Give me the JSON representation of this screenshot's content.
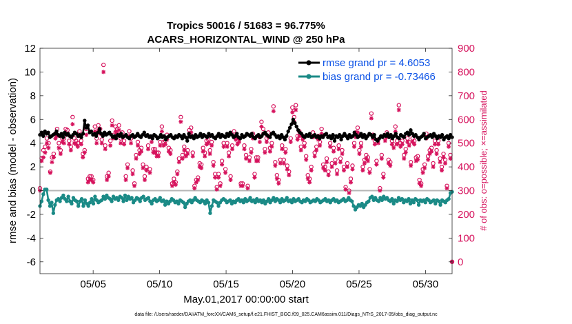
{
  "title_line1": "Tropics 50016 / 51683 = 96.775%",
  "title_line2": "ACARS_HORIZONTAL_WIND @ 250 hPa",
  "xlabel": "May.01,2017 00:00:00 start",
  "ylabel": "rmse and bias (model - observation)",
  "y2label": "# of obs: o=possible; ×=assimilated",
  "footer": "data file: /Users/raeder/DAI/ATM_forcXX/CAM6_setup/f.e21.FHIST_BGC.f09_025.CAM6assim.011/Diags_NTrS_2017-05/obs_diag_output.nc",
  "legend": [
    {
      "label": "rmse grand pr = 4.6053",
      "color": "#000000"
    },
    {
      "label": "bias grand pr = -0.73466",
      "color": "#1a8a86"
    }
  ],
  "chart_data": {
    "type": "line",
    "title": "Tropics 50016 / 51683 = 96.775%",
    "x_tick_labels": [
      "05/05",
      "05/10",
      "05/15",
      "05/20",
      "05/25",
      "05/30"
    ],
    "x_tick_days": [
      5,
      10,
      15,
      20,
      25,
      30
    ],
    "xlim_days": [
      1,
      32
    ],
    "ylim": [
      -7,
      12
    ],
    "y_ticks": [
      -6,
      -4,
      -2,
      0,
      2,
      4,
      6,
      8,
      10,
      12
    ],
    "y2lim": [
      -50,
      900
    ],
    "y2_ticks": [
      0,
      100,
      200,
      300,
      400,
      500,
      600,
      700,
      800,
      900
    ],
    "colors": {
      "rmse": "#000000",
      "bias": "#1a8a86",
      "obs": "#d6135d",
      "zero_line": "#b5b5b5"
    },
    "series": [
      {
        "name": "rmse",
        "axis": "left",
        "values": [
          4.7,
          4.9,
          4.6,
          5.0,
          4.8,
          4.9,
          4.5,
          4.6,
          4.7,
          4.8,
          5.0,
          4.7,
          4.6,
          4.8,
          4.5,
          4.9,
          4.7,
          4.8,
          4.6,
          4.5,
          4.7,
          4.9,
          4.8,
          4.6,
          4.7,
          4.5,
          4.8,
          5.9,
          5.3,
          5.5,
          4.9,
          5.0,
          4.7,
          4.8,
          4.6,
          4.9,
          5.2,
          4.8,
          4.6,
          4.9,
          4.7,
          4.8,
          4.9,
          4.7,
          4.5,
          4.6,
          4.4,
          4.7,
          4.6,
          4.8,
          4.5,
          4.6,
          4.7,
          4.5,
          4.4,
          4.6,
          4.7,
          4.5,
          4.6,
          4.8,
          4.6,
          4.5,
          4.7,
          4.9,
          4.6,
          4.7,
          4.5,
          4.6,
          4.4,
          4.7,
          4.6,
          4.4,
          4.5,
          4.7,
          4.5,
          4.6,
          4.3,
          4.5,
          4.6,
          4.7,
          4.5,
          4.4,
          4.6,
          4.5,
          4.7,
          4.6,
          4.4,
          4.7,
          4.5,
          4.2,
          4.8,
          4.5,
          4.6,
          4.4,
          4.7,
          4.5,
          4.6,
          4.8,
          4.5,
          4.7,
          4.6,
          4.5,
          4.8,
          4.6,
          4.7,
          4.5,
          4.4,
          4.6,
          4.8,
          4.5,
          4.7,
          4.6,
          4.5,
          4.8,
          4.6,
          4.9,
          4.7,
          4.5,
          4.6,
          4.8,
          4.5,
          4.4,
          4.7,
          4.5,
          4.6,
          4.8,
          4.7,
          4.6,
          4.8,
          4.5,
          4.4,
          4.6,
          4.7,
          4.5,
          4.6,
          4.8,
          4.9,
          4.7,
          4.6,
          4.5,
          4.8,
          4.9,
          4.7,
          4.5,
          4.6,
          4.4,
          4.7,
          4.5,
          4.3,
          4.6,
          5.0,
          5.3,
          5.6,
          6.0,
          5.7,
          5.4,
          5.1,
          4.9,
          4.8,
          4.6,
          4.5,
          4.7,
          4.6,
          4.8,
          4.5,
          4.6,
          4.7,
          4.5,
          4.6,
          4.4,
          4.6,
          4.5,
          4.7,
          4.8,
          4.5,
          4.6,
          4.4,
          4.7,
          4.2,
          4.6,
          4.5,
          4.7,
          4.3,
          4.6,
          4.8,
          4.6,
          4.4,
          4.7,
          4.5,
          4.6,
          4.9,
          4.7,
          4.5,
          4.6,
          4.8,
          4.5,
          4.7,
          4.4,
          4.6,
          4.8,
          4.7,
          4.5,
          4.7,
          4.3,
          4.2,
          4.4,
          4.6,
          4.5,
          4.7,
          4.6,
          4.8,
          4.5,
          4.7,
          4.4,
          4.6,
          4.8,
          4.5,
          4.4,
          4.7,
          4.6,
          4.5,
          4.8,
          4.9,
          4.7,
          5.1,
          4.8,
          4.6,
          4.7,
          4.5,
          4.3,
          4.5,
          4.6,
          4.8,
          4.4,
          4.5,
          4.6,
          4.7,
          4.5,
          4.8,
          4.6,
          4.4,
          4.6,
          4.5,
          4.7,
          4.3,
          4.5,
          4.6,
          4.4,
          4.7,
          4.5
        ]
      },
      {
        "name": "bias",
        "axis": "left",
        "values": [
          -1.3,
          -0.9,
          -0.3,
          0.1,
          0.1,
          -0.8,
          -1.3,
          -1.0,
          -1.9,
          -1.2,
          -0.8,
          -0.7,
          -0.9,
          -0.6,
          -0.4,
          -0.7,
          -0.9,
          -0.5,
          -0.9,
          -1.1,
          -0.6,
          -0.8,
          -0.9,
          -1.3,
          -0.9,
          -0.7,
          -1.3,
          -0.8,
          -1.1,
          -1.3,
          -1.0,
          -0.7,
          -1.1,
          -0.5,
          -0.8,
          -1.0,
          -0.9,
          -0.8,
          -0.5,
          -0.7,
          -0.4,
          -0.6,
          -0.7,
          -0.9,
          -0.5,
          -0.7,
          -0.6,
          -0.8,
          -0.5,
          -0.6,
          -0.9,
          -0.4,
          -0.8,
          -0.5,
          -0.7,
          -0.6,
          -1.0,
          -0.8,
          -0.6,
          -0.7,
          -0.9,
          -0.6,
          -0.5,
          -0.8,
          -0.7,
          -0.6,
          -0.9,
          -1.1,
          -0.8,
          -0.7,
          -0.9,
          -0.8,
          -0.6,
          -0.9,
          -0.8,
          -1.2,
          -0.9,
          -1.1,
          -0.9,
          -0.7,
          -0.8,
          -1.0,
          -0.9,
          -1.1,
          -0.8,
          -0.9,
          -1.0,
          -1.4,
          -1.1,
          -0.9,
          -0.8,
          -1.0,
          -0.8,
          -0.6,
          -0.8,
          -0.9,
          -1.0,
          -0.8,
          -0.9,
          -1.1,
          -0.8,
          -1.0,
          -1.9,
          -1.3,
          -0.8,
          -0.9,
          -1.0,
          -1.3,
          -1.0,
          -0.8,
          -0.7,
          -0.8,
          -1.0,
          -0.9,
          -0.8,
          -1.1,
          -0.9,
          -1.0,
          -0.8,
          -0.7,
          -0.9,
          -0.8,
          -1.0,
          -0.7,
          -0.9,
          -0.8,
          -0.6,
          -0.9,
          -0.8,
          -1.0,
          -0.7,
          -0.9,
          -0.8,
          -1.0,
          -0.8,
          -1.1,
          -0.9,
          -0.7,
          -1.0,
          -0.8,
          -0.6,
          -0.9,
          -0.7,
          -0.8,
          -1.0,
          -0.7,
          -0.9,
          -0.8,
          -0.6,
          -0.9,
          -0.8,
          -1.0,
          -0.7,
          -0.9,
          -0.8,
          -0.7,
          -0.9,
          -1.0,
          -0.8,
          -0.9,
          -0.7,
          -0.8,
          -1.0,
          -0.9,
          -0.8,
          -0.9,
          -0.7,
          -0.8,
          -1.0,
          -0.9,
          -0.8,
          -0.7,
          -0.9,
          -0.8,
          -1.0,
          -0.8,
          -0.7,
          -0.9,
          -0.8,
          -1.0,
          -0.9,
          -0.8,
          -0.7,
          -0.9,
          -0.8,
          -0.6,
          -0.8,
          -0.9,
          -1.3,
          -1.6,
          -1.4,
          -1.2,
          -1.3,
          -1.1,
          -1.4,
          -1.2,
          -1.0,
          -0.9,
          -0.6,
          -0.5,
          -0.8,
          -0.6,
          -0.8,
          -0.9,
          -0.6,
          -0.8,
          -0.5,
          -0.7,
          -0.6,
          -0.8,
          -0.9,
          -0.7,
          -1.1,
          -0.8,
          -0.9,
          -0.6,
          -0.8,
          -0.7,
          -1.0,
          -0.8,
          -0.9,
          -0.7,
          -1.1,
          -0.8,
          -1.0,
          -0.7,
          -0.8,
          -1.2,
          -0.8,
          -0.9,
          -0.8,
          -1.0,
          -0.7,
          -0.8,
          -1.0,
          -0.9,
          -0.8,
          -1.1,
          -0.8,
          -0.9,
          -1.2,
          -0.8,
          -0.9,
          -1.0,
          -0.8,
          -0.7,
          -0.2,
          -0.1
        ]
      },
      {
        "name": "possible",
        "axis": "right",
        "marker": "o",
        "values": [
          310,
          437,
          470,
          485,
          520,
          500,
          380,
          440,
          455,
          540,
          560,
          500,
          470,
          520,
          520,
          560,
          555,
          510,
          485,
          610,
          520,
          510,
          500,
          550,
          510,
          455,
          470,
          560,
          350,
          360,
          360,
          345,
          570,
          520,
          575,
          560,
          515,
          830,
          490,
          360,
          375,
          510,
          595,
          535,
          570,
          560,
          575,
          520,
          545,
          510,
          360,
          410,
          550,
          520,
          385,
          330,
          450,
          505,
          470,
          480,
          410,
          360,
          400,
          490,
          390,
          525,
          475,
          475,
          460,
          460,
          505,
          570,
          505,
          510,
          535,
          480,
          470,
          330,
          350,
          335,
          380,
          435,
          610,
          450,
          485,
          460,
          470,
          555,
          565,
          460,
          320,
          345,
          355,
          415,
          410,
          480,
          460,
          510,
          515,
          470,
          505,
          420,
          370,
          315,
          370,
          330,
          425,
          500,
          390,
          500,
          460,
          360,
          490,
          550,
          530,
          510,
          520,
          330,
          330,
          490,
          450,
          320,
          440,
          475,
          540,
          370,
          440,
          440,
          525,
          590,
          560,
          475,
          520,
          545,
          480,
          500,
          655,
          420,
          365,
          345,
          430,
          490,
          430,
          475,
          405,
          380,
          520,
          650,
          610,
          660,
          530,
          550,
          485,
          530,
          500,
          445,
          365,
          350,
          400,
          545,
          460,
          485,
          530,
          505,
          560,
          410,
          400,
          435,
          380,
          500,
          415,
          480,
          430,
          385,
          490,
          435,
          470,
          400,
          315,
          415,
          300,
          350,
          405,
          500,
          545,
          565,
          470,
          500,
          400,
          430,
          450,
          440,
          390,
          625,
          535,
          510,
          425,
          515,
          310,
          450,
          370,
          525,
          545,
          430,
          420,
          510,
          495,
          570,
          510,
          660,
          500,
          510,
          450,
          475,
          520,
          505,
          420,
          520,
          510,
          440,
          445,
          345,
          330,
          390,
          410,
          540,
          445,
          470,
          480,
          415,
          510,
          470,
          510,
          435,
          400,
          455,
          430,
          320,
          500,
          450,
          0
        ]
      },
      {
        "name": "assimilated",
        "axis": "right",
        "marker": "x",
        "values": [
          300,
          425,
          440,
          460,
          500,
          480,
          375,
          420,
          440,
          520,
          530,
          480,
          455,
          505,
          500,
          540,
          535,
          495,
          470,
          580,
          500,
          495,
          485,
          530,
          495,
          440,
          460,
          535,
          335,
          345,
          345,
          335,
          550,
          500,
          555,
          540,
          500,
          800,
          475,
          345,
          360,
          490,
          575,
          520,
          550,
          540,
          555,
          500,
          525,
          495,
          345,
          395,
          530,
          500,
          370,
          320,
          435,
          490,
          455,
          465,
          395,
          345,
          385,
          475,
          375,
          505,
          460,
          460,
          445,
          445,
          490,
          550,
          490,
          495,
          515,
          465,
          455,
          320,
          335,
          325,
          370,
          420,
          590,
          435,
          470,
          445,
          455,
          535,
          545,
          445,
          310,
          335,
          345,
          400,
          395,
          465,
          445,
          495,
          500,
          455,
          490,
          405,
          355,
          305,
          355,
          320,
          410,
          485,
          375,
          485,
          445,
          345,
          475,
          530,
          515,
          495,
          505,
          320,
          320,
          475,
          435,
          310,
          425,
          460,
          520,
          355,
          425,
          425,
          505,
          570,
          540,
          460,
          505,
          525,
          465,
          485,
          635,
          405,
          350,
          330,
          415,
          475,
          415,
          460,
          390,
          365,
          505,
          630,
          590,
          640,
          515,
          530,
          470,
          515,
          485,
          430,
          350,
          335,
          385,
          525,
          445,
          470,
          515,
          490,
          540,
          395,
          385,
          420,
          365,
          485,
          400,
          465,
          415,
          370,
          475,
          420,
          455,
          385,
          305,
          400,
          290,
          335,
          390,
          485,
          525,
          545,
          455,
          485,
          385,
          415,
          435,
          425,
          375,
          605,
          520,
          495,
          410,
          500,
          300,
          435,
          355,
          510,
          525,
          415,
          405,
          495,
          480,
          550,
          495,
          640,
          485,
          495,
          435,
          460,
          505,
          490,
          405,
          505,
          495,
          425,
          430,
          330,
          320,
          375,
          395,
          520,
          430,
          455,
          465,
          400,
          495,
          455,
          495,
          420,
          385,
          440,
          415,
          310,
          485,
          435,
          0
        ]
      }
    ]
  }
}
